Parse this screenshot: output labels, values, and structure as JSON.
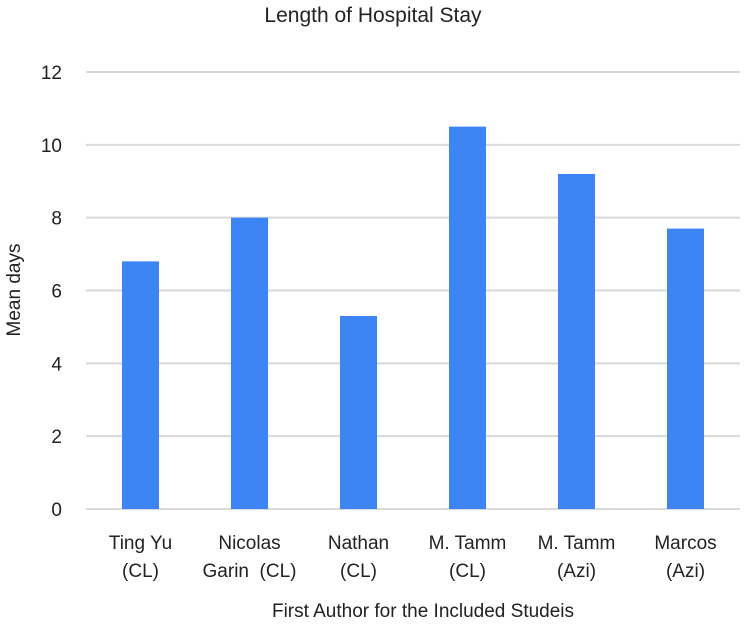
{
  "chart_data": {
    "type": "bar",
    "title": "Length of Hospital Stay",
    "xlabel": "First Author for the Included Studeis",
    "ylabel": "Mean days",
    "categories": [
      [
        "Ting Yu",
        "(CL)"
      ],
      [
        "Nicolas",
        "Garin  (CL)"
      ],
      [
        "Nathan",
        "(CL)"
      ],
      [
        "M. Tamm",
        "(CL)"
      ],
      [
        "M. Tamm",
        "(Azi)"
      ],
      [
        "Marcos",
        "(Azi)"
      ]
    ],
    "values": [
      6.8,
      8.0,
      5.3,
      10.5,
      9.2,
      7.7
    ],
    "ylim": [
      0,
      12
    ],
    "yticks": [
      0,
      2,
      4,
      6,
      8,
      10,
      12
    ],
    "grid": true,
    "legend": "none",
    "colors": {
      "bar": "#3d85f4",
      "grid": "#d9d9d9"
    }
  }
}
